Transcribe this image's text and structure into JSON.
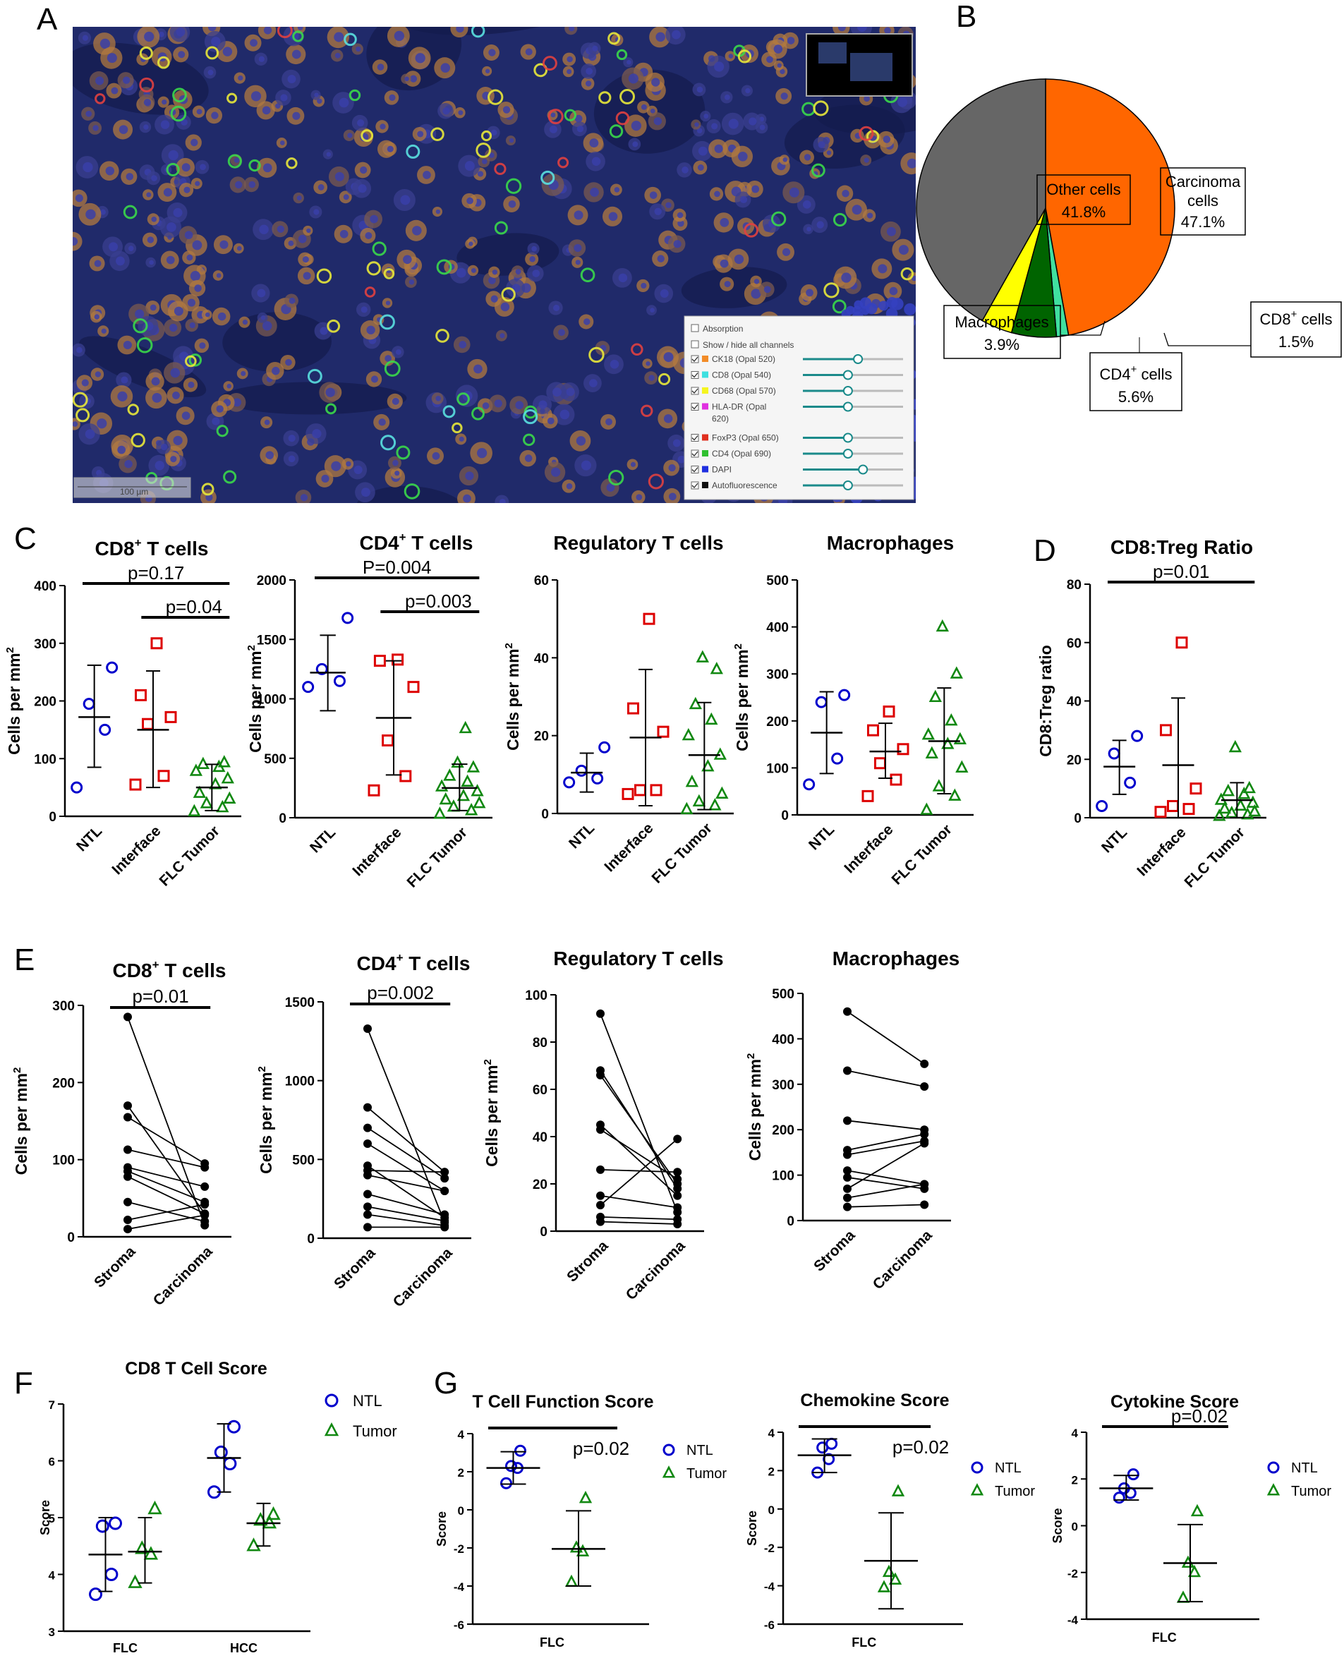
{
  "panels": {
    "A": {
      "label": "A",
      "scale_bar": "100 µm",
      "controls": {
        "absorption": "Absorption",
        "show_hide": "Show / hide all channels",
        "channels": [
          {
            "name": "CK18 (Opal 520)",
            "color": "#f28c28",
            "level": 0.55
          },
          {
            "name": "CD8 (Opal 540)",
            "color": "#3ee0e0",
            "level": 0.45
          },
          {
            "name": "CD68 (Opal 570)",
            "color": "#f5f520",
            "level": 0.45
          },
          {
            "name": "HLA-DR (Opal",
            "name2": "620)",
            "color": "#e030e0",
            "level": 0.45
          },
          {
            "name": "FoxP3 (Opal 650)",
            "color": "#e03020",
            "level": 0.45
          },
          {
            "name": "CD4 (Opal 690)",
            "color": "#30c030",
            "level": 0.45
          },
          {
            "name": "DAPI",
            "color": "#2030e0",
            "level": 0.6
          },
          {
            "name": "Autofluorescence",
            "color": "#111111",
            "level": 0.45
          }
        ]
      }
    },
    "B": {
      "label": "B",
      "pie": [
        {
          "line1": "Carcinoma",
          "line2": "cells",
          "pct": "47.1%",
          "value": 47.1,
          "color": "#ff6600"
        },
        {
          "line1": "CD8",
          "sup": "+",
          "line1b": " cells",
          "pct": "1.5%",
          "value": 1.5,
          "color": "#40e0a0"
        },
        {
          "line1": "CD4",
          "sup": "+",
          "line1b": " cells",
          "pct": "5.6%",
          "value": 5.6,
          "color": "#006400"
        },
        {
          "line1": "Macrophages",
          "pct": "3.9%",
          "value": 3.9,
          "color": "#ffff00"
        },
        {
          "line1": "Other cells",
          "pct": "41.8%",
          "value": 41.8,
          "color": "#666666"
        }
      ]
    },
    "C": {
      "label": "C"
    },
    "D": {
      "label": "D"
    },
    "E": {
      "label": "E"
    },
    "F": {
      "label": "F"
    },
    "G": {
      "label": "G"
    }
  },
  "chart_data": [
    {
      "id": "C1",
      "type": "scatter",
      "title": "CD8",
      "title_sup": "+",
      "title_rest": " T cells",
      "ylabel": "Cells per mm",
      "ylabel_sup": "2",
      "ylim": [
        0,
        400
      ],
      "yticks": [
        0,
        100,
        200,
        300,
        400
      ],
      "categories": [
        "NTL",
        "Interface",
        "FLC Tumor"
      ],
      "groups": [
        {
          "points": [
            50,
            150,
            195,
            258
          ],
          "mean": 172,
          "sd_low": 85,
          "sd_high": 262
        },
        {
          "points": [
            55,
            70,
            160,
            172,
            210,
            300
          ],
          "mean": 150,
          "sd_low": 50,
          "sd_high": 252
        },
        {
          "points": [
            8,
            15,
            22,
            30,
            40,
            55,
            65,
            78,
            85,
            90,
            93
          ],
          "mean": 50,
          "sd_low": 10,
          "sd_high": 90
        }
      ],
      "pvalues": [
        {
          "text": "p=0.17",
          "from": 0,
          "to": 2
        },
        {
          "text": "p=0.04",
          "from": 1,
          "to": 2
        }
      ]
    },
    {
      "id": "C2",
      "type": "scatter",
      "title": "CD4",
      "title_sup": "+",
      "title_rest": " T cells",
      "ylabel": "Cells per mm",
      "ylabel_sup": "2",
      "ylim": [
        0,
        2000
      ],
      "yticks": [
        0,
        500,
        1000,
        1500,
        2000
      ],
      "categories": [
        "NTL",
        "Interface",
        "FLC Tumor"
      ],
      "groups": [
        {
          "points": [
            1100,
            1150,
            1250,
            1680
          ],
          "mean": 1220,
          "sd_low": 900,
          "sd_high": 1535
        },
        {
          "points": [
            230,
            350,
            650,
            1100,
            1320,
            1330
          ],
          "mean": 840,
          "sd_low": 360,
          "sd_high": 1320
        },
        {
          "points": [
            30,
            60,
            90,
            120,
            150,
            180,
            220,
            260,
            300,
            350,
            420,
            460,
            750
          ],
          "mean": 250,
          "sd_low": 60,
          "sd_high": 450
        }
      ],
      "pvalues": [
        {
          "text": "P=0.004",
          "from": 0,
          "to": 2
        },
        {
          "text": "p=0.003",
          "from": 1,
          "to": 2
        }
      ]
    },
    {
      "id": "C3",
      "type": "scatter",
      "title": "Regulatory T cells",
      "ylabel": "Cells per mm",
      "ylabel_sup": "2",
      "ylim": [
        0,
        60
      ],
      "yticks": [
        0,
        20,
        40,
        60
      ],
      "categories": [
        "NTL",
        "Interface",
        "FLC Tumor"
      ],
      "groups": [
        {
          "points": [
            8,
            9,
            11,
            17
          ],
          "mean": 10.5,
          "sd_low": 5.5,
          "sd_high": 15.5
        },
        {
          "points": [
            5,
            6,
            6,
            21,
            27,
            50
          ],
          "mean": 19.5,
          "sd_low": 2,
          "sd_high": 37
        },
        {
          "points": [
            1,
            2,
            3,
            5,
            8,
            12,
            15,
            20,
            24,
            28,
            37,
            40
          ],
          "mean": 15,
          "sd_low": 1,
          "sd_high": 28.5
        }
      ],
      "pvalues": []
    },
    {
      "id": "C4",
      "type": "scatter",
      "title": "Macrophages",
      "ylabel": "Cells per mm",
      "ylabel_sup": "2",
      "ylim": [
        0,
        500
      ],
      "yticks": [
        0,
        100,
        200,
        300,
        400,
        500
      ],
      "categories": [
        "NTL",
        "Interface",
        "FLC Tumor"
      ],
      "groups": [
        {
          "points": [
            65,
            120,
            240,
            255
          ],
          "mean": 175,
          "sd_low": 88,
          "sd_high": 262
        },
        {
          "points": [
            40,
            75,
            110,
            140,
            180,
            220
          ],
          "mean": 135,
          "sd_low": 78,
          "sd_high": 195
        },
        {
          "points": [
            10,
            40,
            60,
            100,
            130,
            150,
            160,
            170,
            200,
            250,
            300,
            400
          ],
          "mean": 157,
          "sd_low": 45,
          "sd_high": 270
        }
      ],
      "pvalues": []
    },
    {
      "id": "D",
      "type": "scatter",
      "title": "CD8:Treg Ratio",
      "ylabel": "CD8:Treg ratio",
      "ylim": [
        0,
        80
      ],
      "yticks": [
        0,
        20,
        40,
        60,
        80
      ],
      "categories": [
        "NTL",
        "Interface",
        "FLC Tumor"
      ],
      "groups": [
        {
          "points": [
            4,
            12,
            22,
            28
          ],
          "mean": 17.5,
          "sd_low": 8,
          "sd_high": 26.5
        },
        {
          "points": [
            2,
            3,
            4,
            10,
            30,
            60
          ],
          "mean": 18,
          "sd_low": 0,
          "sd_high": 41
        },
        {
          "points": [
            0.5,
            1,
            1.5,
            2,
            3,
            4,
            5,
            6,
            8,
            9,
            10,
            24
          ],
          "mean": 6,
          "sd_low": 0,
          "sd_high": 12
        }
      ],
      "pvalues": [
        {
          "text": "p=0.01",
          "from": 0,
          "to": 2
        }
      ]
    },
    {
      "id": "E1",
      "type": "line",
      "title": "CD8",
      "title_sup": "+",
      "title_rest": " T cells",
      "ylabel": "Cells per mm",
      "ylabel_sup": "2",
      "ylim": [
        0,
        300
      ],
      "yticks": [
        0,
        100,
        200,
        300
      ],
      "categories": [
        "Stroma",
        "Carcinoma"
      ],
      "pairs": [
        [
          285,
          15
        ],
        [
          170,
          30
        ],
        [
          155,
          95
        ],
        [
          113,
          90
        ],
        [
          90,
          65
        ],
        [
          85,
          45
        ],
        [
          78,
          30
        ],
        [
          45,
          20
        ],
        [
          22,
          42
        ],
        [
          10,
          28
        ]
      ],
      "pvalues": [
        {
          "text": "p=0.01",
          "from": 0,
          "to": 1
        }
      ]
    },
    {
      "id": "E2",
      "type": "line",
      "title": "CD4",
      "title_sup": "+",
      "title_rest": " T cells",
      "ylabel": "Cells per mm",
      "ylabel_sup": "2",
      "ylim": [
        0,
        1500
      ],
      "yticks": [
        0,
        500,
        1000,
        1500
      ],
      "categories": [
        "Stroma",
        "Carcinoma"
      ],
      "pairs": [
        [
          1330,
          100
        ],
        [
          830,
          420
        ],
        [
          700,
          380
        ],
        [
          600,
          300
        ],
        [
          460,
          130
        ],
        [
          430,
          420
        ],
        [
          400,
          300
        ],
        [
          280,
          150
        ],
        [
          200,
          110
        ],
        [
          150,
          80
        ],
        [
          70,
          70
        ]
      ],
      "pvalues": [
        {
          "text": "p=0.002",
          "from": 0,
          "to": 1
        }
      ]
    },
    {
      "id": "E3",
      "type": "line",
      "title": "Regulatory T cells",
      "ylabel": "Cells per mm",
      "ylabel_sup": "2",
      "ylim": [
        0,
        100
      ],
      "yticks": [
        0,
        20,
        40,
        60,
        80,
        100
      ],
      "categories": [
        "Stroma",
        "Carcinoma"
      ],
      "pairs": [
        [
          92,
          8
        ],
        [
          68,
          18
        ],
        [
          66,
          20
        ],
        [
          45,
          15
        ],
        [
          43,
          22
        ],
        [
          26,
          25
        ],
        [
          15,
          10
        ],
        [
          11,
          39
        ],
        [
          6,
          5
        ],
        [
          4,
          3
        ]
      ],
      "pvalues": []
    },
    {
      "id": "E4",
      "type": "line",
      "title": "Macrophages",
      "ylabel": "Cells per mm",
      "ylabel_sup": "2",
      "ylim": [
        0,
        500
      ],
      "yticks": [
        0,
        100,
        200,
        300,
        400,
        500
      ],
      "categories": [
        "Stroma",
        "Carcinoma"
      ],
      "pairs": [
        [
          460,
          345
        ],
        [
          330,
          295
        ],
        [
          220,
          200
        ],
        [
          155,
          190
        ],
        [
          145,
          175
        ],
        [
          110,
          80
        ],
        [
          95,
          70
        ],
        [
          70,
          170
        ],
        [
          50,
          80
        ],
        [
          30,
          35
        ]
      ],
      "pvalues": []
    },
    {
      "id": "F",
      "type": "scatter",
      "title": "CD8 T Cell Score",
      "ylabel": "Score",
      "ylim": [
        3,
        7
      ],
      "yticks": [
        3,
        4,
        5,
        6,
        7
      ],
      "categories": [
        "FLC",
        "HCC"
      ],
      "series": [
        {
          "name": "NTL",
          "color": "#0000cc"
        },
        {
          "name": "Tumor",
          "color": "#118811"
        }
      ],
      "groups": [
        {
          "cat": 0,
          "series": 0,
          "points": [
            3.65,
            4.0,
            4.85,
            4.9
          ],
          "mean": 4.35,
          "sd_low": 3.7,
          "sd_high": 5.0
        },
        {
          "cat": 0,
          "series": 1,
          "points": [
            3.85,
            4.35,
            4.45,
            5.15
          ],
          "mean": 4.4,
          "sd_low": 3.85,
          "sd_high": 5.0
        },
        {
          "cat": 1,
          "series": 0,
          "points": [
            5.45,
            5.95,
            6.15,
            6.6
          ],
          "mean": 6.05,
          "sd_low": 5.45,
          "sd_high": 6.65
        },
        {
          "cat": 1,
          "series": 1,
          "points": [
            4.5,
            4.9,
            4.95,
            5.05
          ],
          "mean": 4.9,
          "sd_low": 4.5,
          "sd_high": 5.25
        }
      ]
    },
    {
      "id": "G1",
      "type": "scatter",
      "title": "T Cell Function Score",
      "ylabel": "Score",
      "ylim": [
        -6,
        4
      ],
      "yticks": [
        -6,
        -4,
        -2,
        0,
        2,
        4
      ],
      "categories": [
        "FLC"
      ],
      "series": [
        {
          "name": "NTL",
          "color": "#0000cc"
        },
        {
          "name": "Tumor",
          "color": "#118811"
        }
      ],
      "groups": [
        {
          "series": 0,
          "points": [
            1.4,
            2.2,
            2.3,
            3.1
          ],
          "mean": 2.2,
          "sd_low": 1.35,
          "sd_high": 3.05
        },
        {
          "series": 1,
          "points": [
            -3.8,
            -2.2,
            -2.0,
            0.6
          ],
          "mean": -2.05,
          "sd_low": -4.0,
          "sd_high": -0.05
        }
      ],
      "pvalues": [
        {
          "text": "p=0.02"
        }
      ]
    },
    {
      "id": "G2",
      "type": "scatter",
      "title": "Chemokine Score",
      "ylabel": "Score",
      "ylim": [
        -6,
        4
      ],
      "yticks": [
        -6,
        -4,
        -2,
        0,
        2,
        4
      ],
      "categories": [
        "FLC"
      ],
      "series": [
        {
          "name": "NTL",
          "color": "#0000cc"
        },
        {
          "name": "Tumor",
          "color": "#118811"
        }
      ],
      "groups": [
        {
          "series": 0,
          "points": [
            1.9,
            2.6,
            3.2,
            3.4
          ],
          "mean": 2.8,
          "sd_low": 1.9,
          "sd_high": 3.65
        },
        {
          "series": 1,
          "points": [
            -4.1,
            -3.7,
            -3.3,
            0.9
          ],
          "mean": -2.7,
          "sd_low": -5.2,
          "sd_high": -0.2
        }
      ],
      "pvalues": [
        {
          "text": "p=0.02"
        }
      ]
    },
    {
      "id": "G3",
      "type": "scatter",
      "title": "Cytokine Score",
      "ylabel": "Score",
      "ylim": [
        -4,
        4
      ],
      "yticks": [
        -4,
        -2,
        0,
        2,
        4
      ],
      "categories": [
        "FLC"
      ],
      "series": [
        {
          "name": "NTL",
          "color": "#0000cc"
        },
        {
          "name": "Tumor",
          "color": "#118811"
        }
      ],
      "groups": [
        {
          "series": 0,
          "points": [
            1.2,
            1.4,
            1.6,
            2.2
          ],
          "mean": 1.6,
          "sd_low": 1.1,
          "sd_high": 2.15
        },
        {
          "series": 1,
          "points": [
            -3.1,
            -2.0,
            -1.6,
            0.6
          ],
          "mean": -1.6,
          "sd_low": -3.25,
          "sd_high": 0.05
        }
      ],
      "pvalues": [
        {
          "text": "p=0.02"
        }
      ]
    }
  ]
}
